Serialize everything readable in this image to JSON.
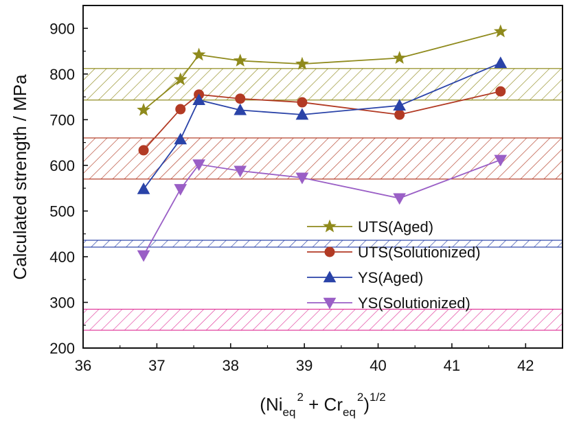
{
  "chart_data": {
    "type": "line",
    "xlabel": {
      "open": "(Ni",
      "sub1": "eq",
      "sup1": "2",
      "mid": " + Cr",
      "sub2": "eq",
      "sup2": "2",
      "close": ")",
      "sup3": "1/2"
    },
    "ylabel": "Calculated strength / MPa",
    "xlim": [
      36,
      42.5
    ],
    "ylim": [
      200,
      950
    ],
    "xticks": [
      36,
      37,
      38,
      39,
      40,
      41,
      42
    ],
    "yticks": [
      200,
      300,
      400,
      500,
      600,
      700,
      800,
      900
    ],
    "x": [
      36.82,
      37.32,
      37.57,
      38.13,
      38.97,
      40.29,
      41.66
    ],
    "series": [
      {
        "name": "UTS(Aged)",
        "marker": "star",
        "color": "#8f8a1c",
        "values": [
          721,
          788,
          842,
          829,
          822,
          835,
          893
        ]
      },
      {
        "name": "UTS(Solutionized)",
        "marker": "circle",
        "color": "#b23a24",
        "values": [
          633,
          723,
          755,
          746,
          738,
          711,
          762
        ]
      },
      {
        "name": "YS(Aged)",
        "marker": "triangle-up",
        "color": "#2a43a8",
        "values": [
          548,
          657,
          743,
          721,
          711,
          731,
          824
        ]
      },
      {
        "name": "YS(Solutionized)",
        "marker": "triangle-down",
        "color": "#9a5fc6",
        "values": [
          403,
          548,
          602,
          588,
          573,
          528,
          612
        ]
      }
    ],
    "bands": [
      {
        "color": "#8f8a1c",
        "range": [
          743,
          812
        ]
      },
      {
        "color": "#b23a24",
        "range": [
          570,
          660
        ]
      },
      {
        "color": "#2a43a8",
        "range": [
          421,
          436
        ]
      },
      {
        "color": "#e0389a",
        "range": [
          239,
          285
        ]
      }
    ],
    "legend_position": "lower-right",
    "grid": false
  }
}
